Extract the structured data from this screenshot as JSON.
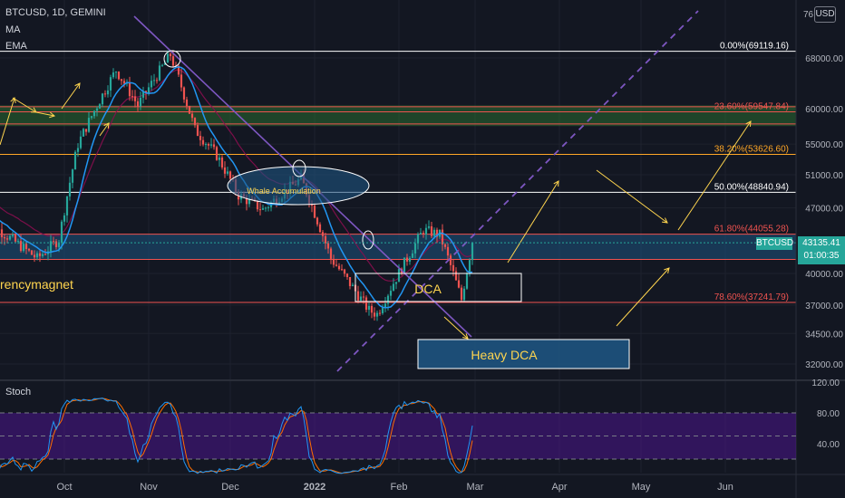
{
  "header": {
    "symbol_line": "BTCUSD, 1D, GEMINI",
    "indicator_1": "MA",
    "indicator_2": "EMA",
    "currency_button": "USD",
    "stoch_label": "Stoch"
  },
  "watermark": "rencymagnet",
  "price_tag": {
    "symbol": "BTCUSD",
    "price": "43135.41",
    "countdown": "01:00:35",
    "color": "#26a69a"
  },
  "colors": {
    "up": "#26a69a",
    "down": "#ef5350",
    "background": "#131722",
    "fib_zone": "#1e5380",
    "ma": "#2196f3",
    "ema": "#880e4f",
    "annotation": "#ffd54f",
    "trend": "#7e57c2"
  },
  "annotations": {
    "dca": "DCA",
    "heavy_dca": "Heavy DCA",
    "whale": "Whale Accumulation"
  },
  "chart_data": {
    "type": "candlestick",
    "symbol": "BTCUSD",
    "timeframe": "1D",
    "exchange": "GEMINI",
    "x_labels": [
      "Oct",
      "Nov",
      "Dec",
      "2022",
      "Feb",
      "Mar",
      "Apr",
      "May",
      "Jun"
    ],
    "y_ticks": [
      "68000.00",
      "60000.00",
      "55000.00",
      "51000.00",
      "47000.00",
      "43135.41",
      "40000.00",
      "37000.00",
      "34500.00",
      "32000.00"
    ],
    "y_tick_values": [
      68000,
      60000,
      55000,
      51000,
      47000,
      40000,
      37000,
      34500,
      32000
    ],
    "y_log_scale": true,
    "last_price": 43135.41,
    "fib_levels": [
      {
        "label": "0.00%(69119.16)",
        "value": 69119.16,
        "color": "#ffffff"
      },
      {
        "label": "23.60%(59547.84)",
        "value": 59547.84,
        "color": "#ef5350"
      },
      {
        "label": "38.20%(53626.60)",
        "value": 53626.6,
        "color": "#ffa726"
      },
      {
        "label": "50.00%(48840.94)",
        "value": 48840.94,
        "color": "#ffffff"
      },
      {
        "label": "61.80%(44055.28)",
        "value": 44055.28,
        "color": "#ef5350"
      },
      {
        "label": "78.60%(37241.79)",
        "value": 37241.79,
        "color": "#ef5350"
      }
    ],
    "anchors": [
      [
        "2021-09-01",
        47000
      ],
      [
        "2021-09-07",
        44500
      ],
      [
        "2021-09-21",
        41500
      ],
      [
        "2021-09-29",
        43500
      ],
      [
        "2021-10-06",
        55000
      ],
      [
        "2021-10-20",
        66000
      ],
      [
        "2021-10-28",
        60500
      ],
      [
        "2021-11-09",
        68500
      ],
      [
        "2021-11-18",
        57000
      ],
      [
        "2021-11-26",
        53500
      ],
      [
        "2021-12-04",
        48500
      ],
      [
        "2021-12-13",
        46800
      ],
      [
        "2021-12-27",
        50500
      ],
      [
        "2022-01-07",
        41500
      ],
      [
        "2022-01-21",
        36500
      ],
      [
        "2022-01-24",
        36200
      ],
      [
        "2022-02-04",
        41500
      ],
      [
        "2022-02-10",
        44500
      ],
      [
        "2022-02-16",
        44000
      ],
      [
        "2022-02-24",
        37500
      ],
      [
        "2022-02-28",
        43135
      ]
    ],
    "stoch": {
      "y_ticks": [
        "120.00",
        "80.00",
        "40.00"
      ],
      "y_tick_values": [
        120,
        80,
        40
      ],
      "band": [
        20,
        80
      ],
      "range": [
        0,
        120
      ]
    }
  }
}
